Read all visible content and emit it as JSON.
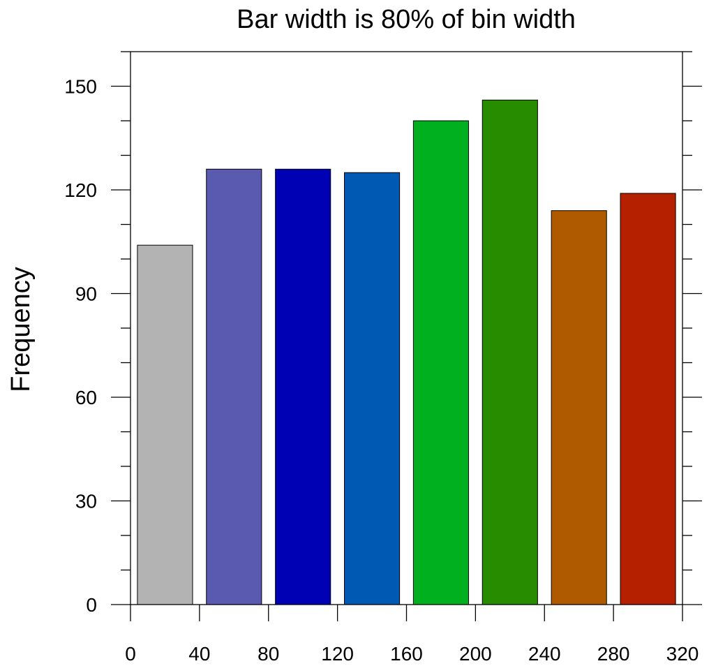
{
  "chart_data": {
    "type": "bar",
    "title": "Bar width is 80% of bin width",
    "xlabel": "",
    "ylabel": "Frequency",
    "bin_width": 40,
    "bar_width_fraction": 0.8,
    "xlim": [
      0,
      320
    ],
    "ylim": [
      0,
      160
    ],
    "x_ticks": [
      "0",
      "40",
      "80",
      "120",
      "160",
      "200",
      "240",
      "280",
      "320"
    ],
    "x_tick_values": [
      0,
      40,
      80,
      120,
      160,
      200,
      240,
      280,
      320
    ],
    "y_ticks": [
      "0",
      "30",
      "60",
      "90",
      "120",
      "150"
    ],
    "y_tick_values": [
      0,
      30,
      60,
      90,
      120,
      150
    ],
    "y_minor_step": 10,
    "grid": false,
    "bins": [
      {
        "start": 0,
        "end": 40,
        "value": 104,
        "color": "#b3b3b3"
      },
      {
        "start": 40,
        "end": 80,
        "value": 126,
        "color": "#5a5ab0"
      },
      {
        "start": 80,
        "end": 120,
        "value": 126,
        "color": "#0000b4"
      },
      {
        "start": 120,
        "end": 160,
        "value": 125,
        "color": "#005ab4"
      },
      {
        "start": 160,
        "end": 200,
        "value": 140,
        "color": "#00b01e"
      },
      {
        "start": 200,
        "end": 240,
        "value": 146,
        "color": "#288c00"
      },
      {
        "start": 240,
        "end": 280,
        "value": 114,
        "color": "#b05a00"
      },
      {
        "start": 280,
        "end": 320,
        "value": 119,
        "color": "#b42000"
      }
    ]
  }
}
